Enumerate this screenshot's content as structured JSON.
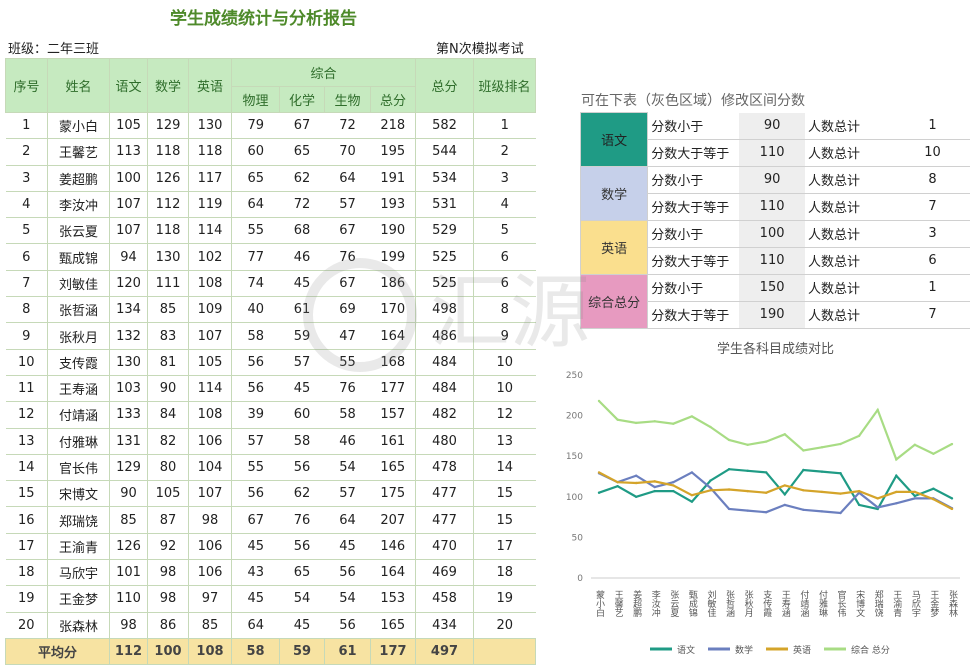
{
  "title": "学生成绩统计与分析报告",
  "class_label": "班级：二年三班",
  "exam_label": "第N次模拟考试",
  "headers": {
    "seq": "序号",
    "name": "姓名",
    "chinese": "语文",
    "math": "数学",
    "english": "英语",
    "combined": "综合",
    "physics": "物理",
    "chemistry": "化学",
    "biology": "生物",
    "combined_total": "总分",
    "total": "总分",
    "rank": "班级排名"
  },
  "students": [
    [
      "1",
      "蒙小白",
      "105",
      "129",
      "130",
      "79",
      "67",
      "72",
      "218",
      "582",
      "1"
    ],
    [
      "2",
      "王馨艺",
      "113",
      "118",
      "118",
      "60",
      "65",
      "70",
      "195",
      "544",
      "2"
    ],
    [
      "3",
      "姜超鹏",
      "100",
      "126",
      "117",
      "65",
      "62",
      "64",
      "191",
      "534",
      "3"
    ],
    [
      "4",
      "李汝冲",
      "107",
      "112",
      "119",
      "64",
      "72",
      "57",
      "193",
      "531",
      "4"
    ],
    [
      "5",
      "张云夏",
      "107",
      "118",
      "114",
      "55",
      "68",
      "67",
      "190",
      "529",
      "5"
    ],
    [
      "6",
      "甄成锦",
      "94",
      "130",
      "102",
      "77",
      "46",
      "76",
      "199",
      "525",
      "6"
    ],
    [
      "7",
      "刘敏佳",
      "120",
      "111",
      "108",
      "74",
      "45",
      "67",
      "186",
      "525",
      "6"
    ],
    [
      "8",
      "张哲涵",
      "134",
      "85",
      "109",
      "40",
      "61",
      "69",
      "170",
      "498",
      "8"
    ],
    [
      "9",
      "张秋月",
      "132",
      "83",
      "107",
      "58",
      "59",
      "47",
      "164",
      "486",
      "9"
    ],
    [
      "10",
      "支传霞",
      "130",
      "81",
      "105",
      "56",
      "57",
      "55",
      "168",
      "484",
      "10"
    ],
    [
      "11",
      "王寿涵",
      "103",
      "90",
      "114",
      "56",
      "45",
      "76",
      "177",
      "484",
      "10"
    ],
    [
      "12",
      "付靖涵",
      "133",
      "84",
      "108",
      "39",
      "60",
      "58",
      "157",
      "482",
      "12"
    ],
    [
      "13",
      "付雅琳",
      "131",
      "82",
      "106",
      "57",
      "58",
      "46",
      "161",
      "480",
      "13"
    ],
    [
      "14",
      "官长伟",
      "129",
      "80",
      "104",
      "55",
      "56",
      "54",
      "165",
      "478",
      "14"
    ],
    [
      "15",
      "宋博文",
      "90",
      "105",
      "107",
      "56",
      "62",
      "57",
      "175",
      "477",
      "15"
    ],
    [
      "16",
      "郑瑞饶",
      "85",
      "87",
      "98",
      "67",
      "76",
      "64",
      "207",
      "477",
      "15"
    ],
    [
      "17",
      "王渝青",
      "126",
      "92",
      "106",
      "45",
      "56",
      "45",
      "146",
      "470",
      "17"
    ],
    [
      "18",
      "马欣宇",
      "101",
      "98",
      "106",
      "43",
      "65",
      "56",
      "164",
      "469",
      "18"
    ],
    [
      "19",
      "王金梦",
      "110",
      "98",
      "97",
      "45",
      "54",
      "54",
      "153",
      "458",
      "19"
    ],
    [
      "20",
      "张森林",
      "98",
      "86",
      "85",
      "64",
      "45",
      "56",
      "165",
      "434",
      "20"
    ]
  ],
  "average": {
    "label": "平均分",
    "values": [
      "112",
      "100",
      "108",
      "58",
      "59",
      "61",
      "177",
      "497"
    ]
  },
  "range_hint": "可在下表（灰色区域）修改区间分数",
  "ranges": [
    {
      "subject": "语文",
      "color": "#1f9b85",
      "text_color": "#222",
      "rows": [
        {
          "cond": "分数小于",
          "value": "90",
          "label": "人数总计",
          "count": "1"
        },
        {
          "cond": "分数大于等于",
          "value": "110",
          "label": "人数总计",
          "count": "10"
        }
      ]
    },
    {
      "subject": "数学",
      "color": "#c6d0ea",
      "text_color": "#333",
      "rows": [
        {
          "cond": "分数小于",
          "value": "90",
          "label": "人数总计",
          "count": "8"
        },
        {
          "cond": "分数大于等于",
          "value": "110",
          "label": "人数总计",
          "count": "7"
        }
      ]
    },
    {
      "subject": "英语",
      "color": "#fadf8e",
      "text_color": "#333",
      "rows": [
        {
          "cond": "分数小于",
          "value": "100",
          "label": "人数总计",
          "count": "3"
        },
        {
          "cond": "分数大于等于",
          "value": "110",
          "label": "人数总计",
          "count": "6"
        }
      ]
    },
    {
      "subject": "综合总分",
      "color": "#e79ac0",
      "text_color": "#333",
      "rows": [
        {
          "cond": "分数小于",
          "value": "150",
          "label": "人数总计",
          "count": "1"
        },
        {
          "cond": "分数大于等于",
          "value": "190",
          "label": "人数总计",
          "count": "7"
        }
      ]
    }
  ],
  "chart_data": {
    "type": "line",
    "title": "学生各科目成绩对比",
    "categories": [
      "蒙小白",
      "王馨艺",
      "姜超鹏",
      "李汝冲",
      "张云夏",
      "甄成锦",
      "刘敏佳",
      "张哲涵",
      "张秋月",
      "支传霞",
      "王寿涵",
      "付靖涵",
      "付雅琳",
      "官长伟",
      "宋博文",
      "郑瑞饶",
      "王渝青",
      "马欣宇",
      "王金梦",
      "张森林"
    ],
    "ylim": [
      0,
      250
    ],
    "yticks": [
      0,
      50,
      100,
      150,
      200,
      250
    ],
    "grid": false,
    "legend_position": "bottom",
    "series": [
      {
        "name": "语文",
        "color": "#1f9b85",
        "values": [
          105,
          113,
          100,
          107,
          107,
          94,
          120,
          134,
          132,
          130,
          103,
          133,
          131,
          129,
          90,
          85,
          126,
          101,
          110,
          98
        ]
      },
      {
        "name": "数学",
        "color": "#6b7fbf",
        "values": [
          129,
          118,
          126,
          112,
          118,
          130,
          111,
          85,
          83,
          81,
          90,
          84,
          82,
          80,
          105,
          87,
          92,
          98,
          98,
          86
        ]
      },
      {
        "name": "英语",
        "color": "#d4a42a",
        "values": [
          130,
          118,
          117,
          119,
          114,
          102,
          108,
          109,
          107,
          105,
          114,
          108,
          106,
          104,
          107,
          98,
          106,
          106,
          97,
          85
        ]
      },
      {
        "name": "综合  总分",
        "color": "#a8dc84",
        "values": [
          218,
          195,
          191,
          193,
          190,
          199,
          186,
          170,
          164,
          168,
          177,
          157,
          161,
          165,
          175,
          207,
          146,
          164,
          153,
          165
        ]
      }
    ]
  }
}
